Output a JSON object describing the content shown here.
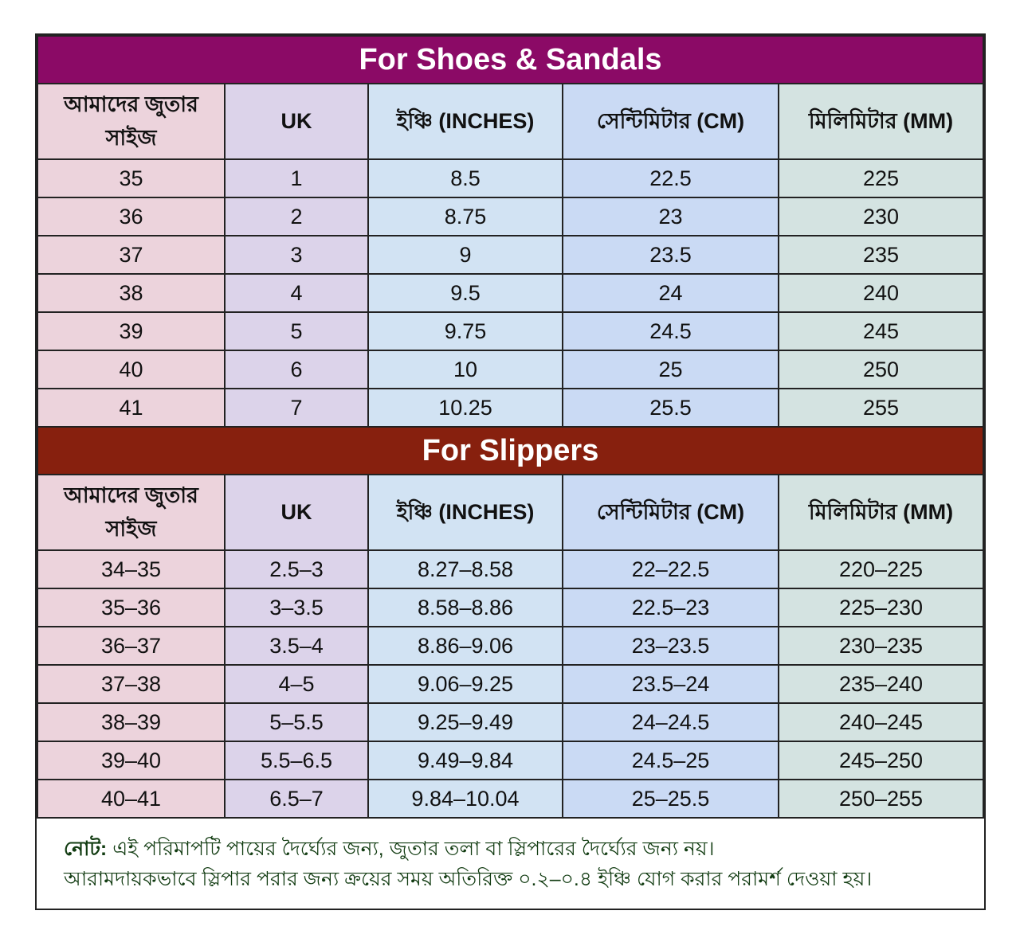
{
  "colors": {
    "shoes_title": "#8b0a66",
    "slippers_title": "#87200e",
    "note_text": "#123c12"
  },
  "headers": [
    "আমাদের জুতার সাইজ",
    "UK",
    "ইঞ্চি (INCHES)",
    "সেন্টিমিটার (CM)",
    "মিলিমিটার (MM)"
  ],
  "sections": [
    {
      "title": "For Shoes & Sandals",
      "rows": [
        [
          "35",
          "1",
          "8.5",
          "22.5",
          "225"
        ],
        [
          "36",
          "2",
          "8.75",
          "23",
          "230"
        ],
        [
          "37",
          "3",
          "9",
          "23.5",
          "235"
        ],
        [
          "38",
          "4",
          "9.5",
          "24",
          "240"
        ],
        [
          "39",
          "5",
          "9.75",
          "24.5",
          "245"
        ],
        [
          "40",
          "6",
          "10",
          "25",
          "250"
        ],
        [
          "41",
          "7",
          "10.25",
          "25.5",
          "255"
        ]
      ]
    },
    {
      "title": "For Slippers",
      "rows": [
        [
          "34–35",
          "2.5–3",
          "8.27–8.58",
          "22–22.5",
          "220–225"
        ],
        [
          "35–36",
          "3–3.5",
          "8.58–8.86",
          "22.5–23",
          "225–230"
        ],
        [
          "36–37",
          "3.5–4",
          "8.86–9.06",
          "23–23.5",
          "230–235"
        ],
        [
          "37–38",
          "4–5",
          "9.06–9.25",
          "23.5–24",
          "235–240"
        ],
        [
          "38–39",
          "5–5.5",
          "9.25–9.49",
          "24–24.5",
          "240–245"
        ],
        [
          "39–40",
          "5.5–6.5",
          "9.49–9.84",
          "24.5–25",
          "245–250"
        ],
        [
          "40–41",
          "6.5–7",
          "9.84–10.04",
          "25–25.5",
          "250–255"
        ]
      ]
    }
  ],
  "note": {
    "label": "নোট:",
    "line1": " এই পরিমাপটি পায়ের দৈর্ঘ্যের জন্য, জুতার তলা বা স্লিপারের দৈর্ঘ্যের জন্য নয়।",
    "line2": "আরামদায়কভাবে স্লিপার পরার জন্য ক্রয়ের সময় অতিরিক্ত ০.২–০.৪ ইঞ্চি যোগ করার পরামর্শ দেওয়া হয়।"
  }
}
